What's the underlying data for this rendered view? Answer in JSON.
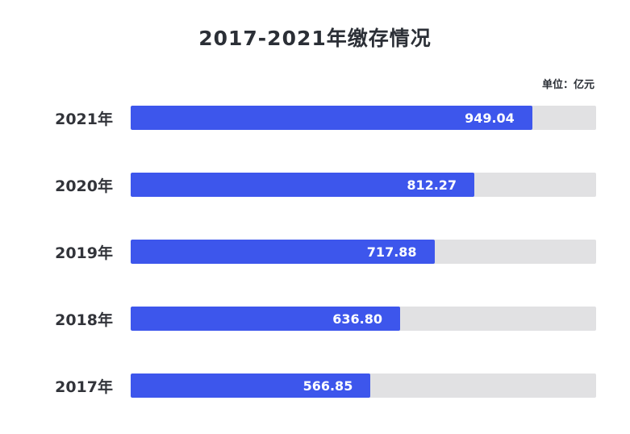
{
  "chart_data": {
    "type": "bar",
    "orientation": "horizontal",
    "title": "2017-2021年缴存情况",
    "unit_label": "单位：亿元",
    "categories": [
      "2021年",
      "2020年",
      "2019年",
      "2018年",
      "2017年"
    ],
    "values": [
      949.04,
      812.27,
      717.88,
      636.8,
      566.85
    ],
    "value_labels": [
      "949.04",
      "812.27",
      "717.88",
      "636.80",
      "566.85"
    ],
    "xlim": [
      0,
      1100
    ],
    "grid": false,
    "legend": "none",
    "bar_color": "#3d56ec",
    "track_color": "#e1e1e3",
    "value_text_color": "#ffffff",
    "title_color": "#2b2f36"
  }
}
